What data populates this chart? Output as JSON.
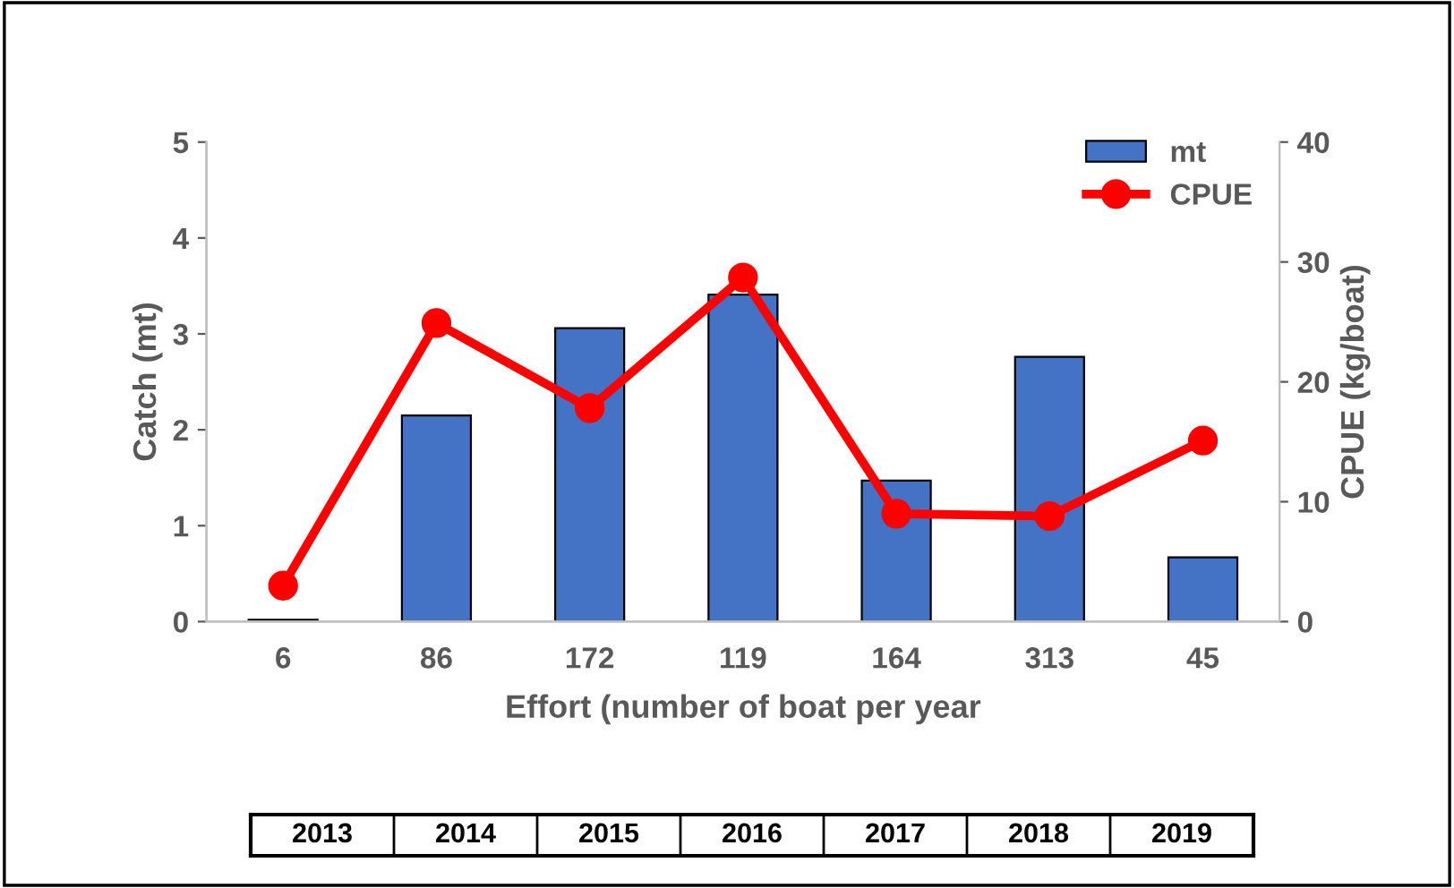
{
  "chart_data": {
    "type": "bar",
    "xlabel": "Effort (number of boat per year",
    "ylabel": "Catch (mt)",
    "y2label": "CPUE (kg/boat)",
    "categories": [
      "6",
      "86",
      "172",
      "119",
      "164",
      "313",
      "45"
    ],
    "series": [
      {
        "name": "mt",
        "color": "#4472c4",
        "values": [
          0.02,
          2.15,
          3.06,
          3.41,
          1.47,
          2.76,
          0.67
        ]
      },
      {
        "name": "CPUE",
        "type": "line",
        "axis": "y2",
        "color": "#ff0000",
        "values": [
          3.0,
          24.9,
          17.8,
          28.7,
          9.0,
          8.8,
          15.1
        ]
      }
    ],
    "ylim": [
      0,
      5
    ],
    "yticks": [
      0,
      1,
      2,
      3,
      4,
      5
    ],
    "y2lim": [
      0,
      40
    ],
    "y2ticks": [
      0,
      10,
      20,
      30,
      40
    ],
    "marker": "circle",
    "line_style": "solid",
    "grid": false,
    "legend": "top right",
    "annotations": [
      "2013",
      "2014",
      "2015",
      "2016",
      "2017",
      "2018",
      "2019"
    ]
  }
}
